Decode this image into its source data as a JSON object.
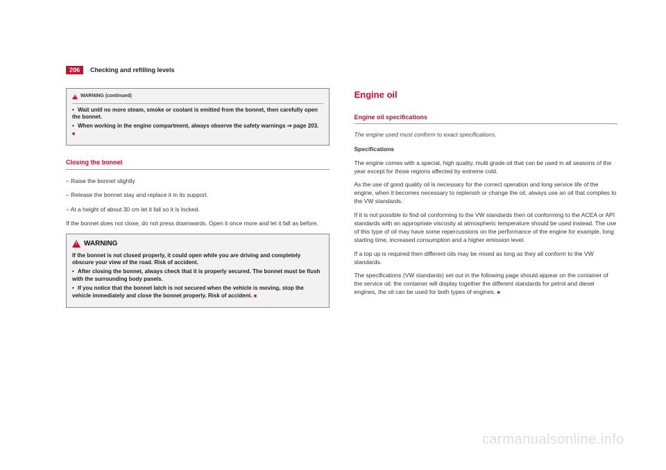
{
  "header": {
    "page_number": "206",
    "section": "Checking and refilling levels"
  },
  "left": {
    "warn1": {
      "label": "WARNING (continued)",
      "b1": "Wait until no more steam, smoke or coolant is emitted from the bonnet, then carefully open the bonnet.",
      "b2_a": "When working in the engine compartment, always observe the safety warnings ",
      "b2_b": "page 203."
    },
    "h_close": "Closing the bonnet",
    "step1": "–  Raise the bonnet slightly",
    "step2": "–  Release the bonnet stay and replace it in its support.",
    "step3": "–  At a height of about 30 cm let it fall so it is locked.",
    "after": "If the bonnet does not close, do not press downwards. Open it once more and let it fall as before.",
    "warn2": {
      "title": "WARNING",
      "p1": "If the bonnet is not closed properly, it could open while you are driving and completely obscure your view of the road. Risk of accident.",
      "b1": "After closing the bonnet, always check that it is properly secured. The bonnet must be flush with the surrounding body panels.",
      "b2": "If you notice that the bonnet latch is not secured when the vehicle is moving, stop the vehicle immediately and close the bonnet properly. Risk of accident."
    }
  },
  "right": {
    "h_oil": "Engine oil",
    "h_spec": "Engine oil specifications",
    "intro": "The engine used must conform to exact specifications.",
    "sub": "Specifications",
    "p1": "The engine comes with a special, high quality, multi grade oil that can be used in all seasons of the year except for those regions affected by extreme cold.",
    "p2": "As the use of good quality oil is necessary for the correct operation and long service life of the engine, when it becomes necessary to replenish or change the oil, always use an oil that complies to the VW standards.",
    "p3": "If it is not possible to find oil conforming to the VW standards then oil conforming to the ACEA or API standards with an appropriate viscosity at atmospheric temperature should be used instead. The use of this type of oil may have some repercussions on the performance of the engine for example, long starting time, increased consumption and a higher emission level.",
    "p4": "If a top up is required then different oils may be mixed as long as they all conform to the VW standards.",
    "p5": "The specifications (VW standards) set out in the following page should appear on the container of the service oil; the container will display together the different standards for petrol and diesel engines, the oil can be used for both types of engines."
  },
  "watermark": "carmanualsonline.info"
}
